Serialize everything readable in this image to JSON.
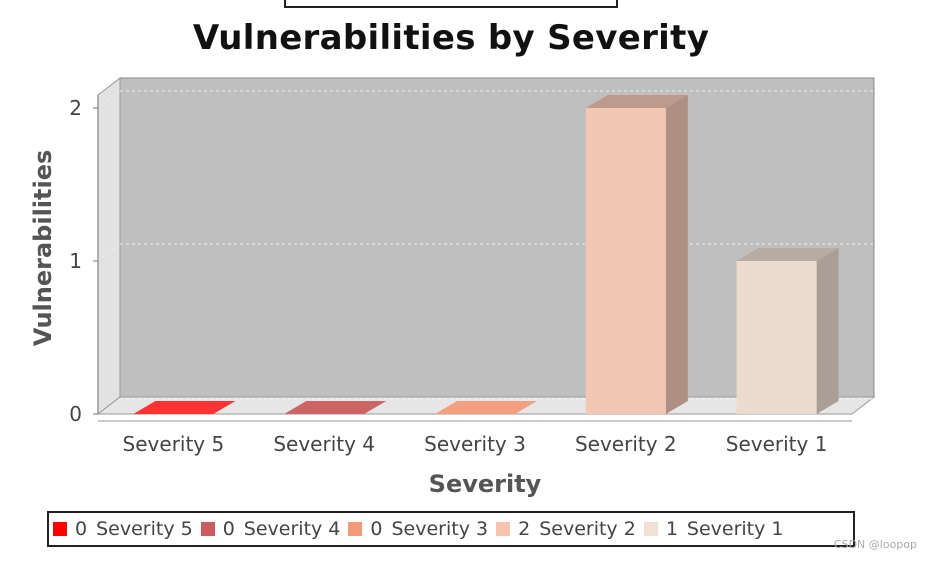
{
  "chart_data": {
    "type": "bar",
    "title": "Vulnerabilities by Severity",
    "xlabel": "Severity",
    "ylabel": "Vulnerabilities",
    "categories": [
      "Severity 5",
      "Severity 4",
      "Severity 3",
      "Severity 2",
      "Severity 1"
    ],
    "values": [
      0,
      0,
      0,
      2,
      1
    ],
    "ylim": [
      0,
      2
    ],
    "yticks": [
      "0",
      "1",
      "2"
    ],
    "colors": [
      "#ff3333",
      "#cc6666",
      "#f4a080",
      "#f2c7b4",
      "#ecdcd0"
    ],
    "legend": [
      {
        "count": "0",
        "label": "Severity 5"
      },
      {
        "count": "0",
        "label": "Severity 4"
      },
      {
        "count": "0",
        "label": "Severity 3"
      },
      {
        "count": "2",
        "label": "Severity 2"
      },
      {
        "count": "1",
        "label": "Severity 1"
      }
    ],
    "legend_colors": [
      "#ff0000",
      "#c95c5c",
      "#f29a78",
      "#f7c4ad",
      "#f0e0d6"
    ],
    "legend_position": "bottom",
    "grid": true,
    "three_d": true
  },
  "watermark": "CSDN @loopop"
}
